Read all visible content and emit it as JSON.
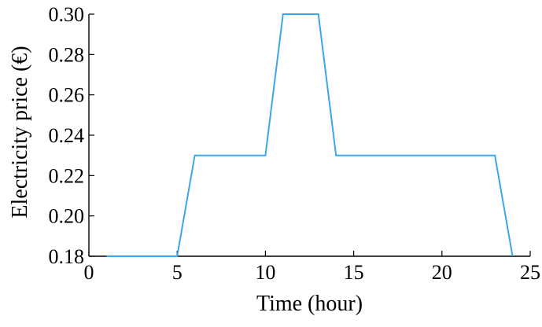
{
  "chart_data": {
    "type": "line",
    "title": "",
    "xlabel": "Time (hour)",
    "ylabel": "Electricity price (€)",
    "xlim": [
      0,
      25
    ],
    "ylim": [
      0.18,
      0.3
    ],
    "xticks": [
      0,
      5,
      10,
      15,
      20,
      25
    ],
    "xtick_labels": [
      "0",
      "5",
      "10",
      "15",
      "20",
      "25"
    ],
    "yticks": [
      0.18,
      0.2,
      0.22,
      0.24,
      0.26,
      0.28,
      0.3
    ],
    "ytick_labels": [
      "0.18",
      "0.20",
      "0.22",
      "0.24",
      "0.26",
      "0.28",
      "0.30"
    ],
    "grid": false,
    "line_color": "#3aa8e8",
    "series": [
      {
        "x": [
          1,
          5,
          6,
          10,
          11,
          13,
          14,
          23,
          24
        ],
        "y": [
          0.18,
          0.18,
          0.23,
          0.23,
          0.3,
          0.3,
          0.23,
          0.23,
          0.18
        ]
      }
    ]
  }
}
